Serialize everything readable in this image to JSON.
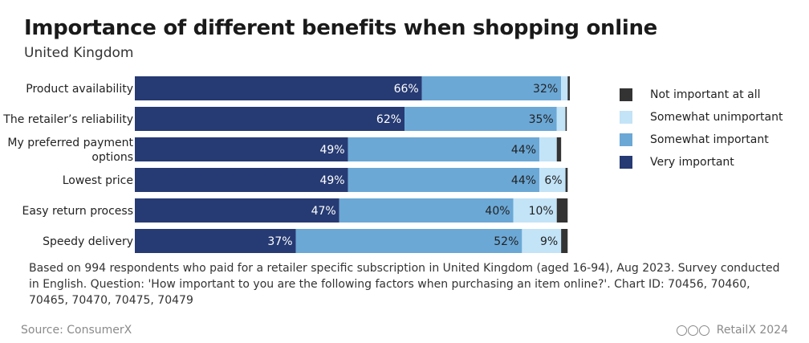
{
  "header": {
    "title": "Importance of different benefits when shopping online",
    "subtitle": "United Kingdom"
  },
  "chart_data": {
    "type": "bar",
    "orientation": "horizontal",
    "stacked": true,
    "categories": [
      "Product availability",
      "The retailer’s reliability",
      "My preferred payment options",
      "Lowest price",
      "Easy return process",
      "Speedy delivery"
    ],
    "category_lines": [
      [
        "Product availability"
      ],
      [
        "The retailer’s reliability"
      ],
      [
        "My preferred payment",
        "options"
      ],
      [
        "Lowest price"
      ],
      [
        "Easy return process"
      ],
      [
        "Speedy delivery"
      ]
    ],
    "series": [
      {
        "name": "Very important",
        "color": "#263a73",
        "values": [
          66,
          62,
          49,
          49,
          47,
          37
        ],
        "labels": [
          "66%",
          "62%",
          "49%",
          "49%",
          "47%",
          "37%"
        ]
      },
      {
        "name": "Somewhat important",
        "color": "#6ba8d6",
        "values": [
          32,
          35,
          44,
          44,
          40,
          52
        ],
        "labels": [
          "32%",
          "35%",
          "44%",
          "44%",
          "40%",
          "52%"
        ]
      },
      {
        "name": "Somewhat unimportant",
        "color": "#c3e3f7",
        "values": [
          1.5,
          2,
          4,
          6,
          10,
          9
        ],
        "labels": [
          "",
          "",
          "",
          "6%",
          "10%",
          "9%"
        ]
      },
      {
        "name": "Not important at all",
        "color": "#333333",
        "values": [
          0.5,
          0.3,
          1,
          0.5,
          2.5,
          1.5
        ],
        "labels": [
          "",
          "",
          "",
          "",
          "",
          ""
        ]
      }
    ],
    "xlim": [
      0,
      100
    ],
    "legend_order": [
      "Not important at all",
      "Somewhat unimportant",
      "Somewhat important",
      "Very important"
    ],
    "legend_position": "right"
  },
  "footnote": "Based on 994 respondents who paid for a retailer specific subscription in United Kingdom (aged 16-94), Aug 2023. Survey conducted in English. Question: 'How important to you are the following factors when purchasing an item online?'. Chart ID: 70456, 70460, 70465, 70470, 70475, 70479",
  "source": "Source: ConsumerX",
  "brand": "RetailX 2024"
}
